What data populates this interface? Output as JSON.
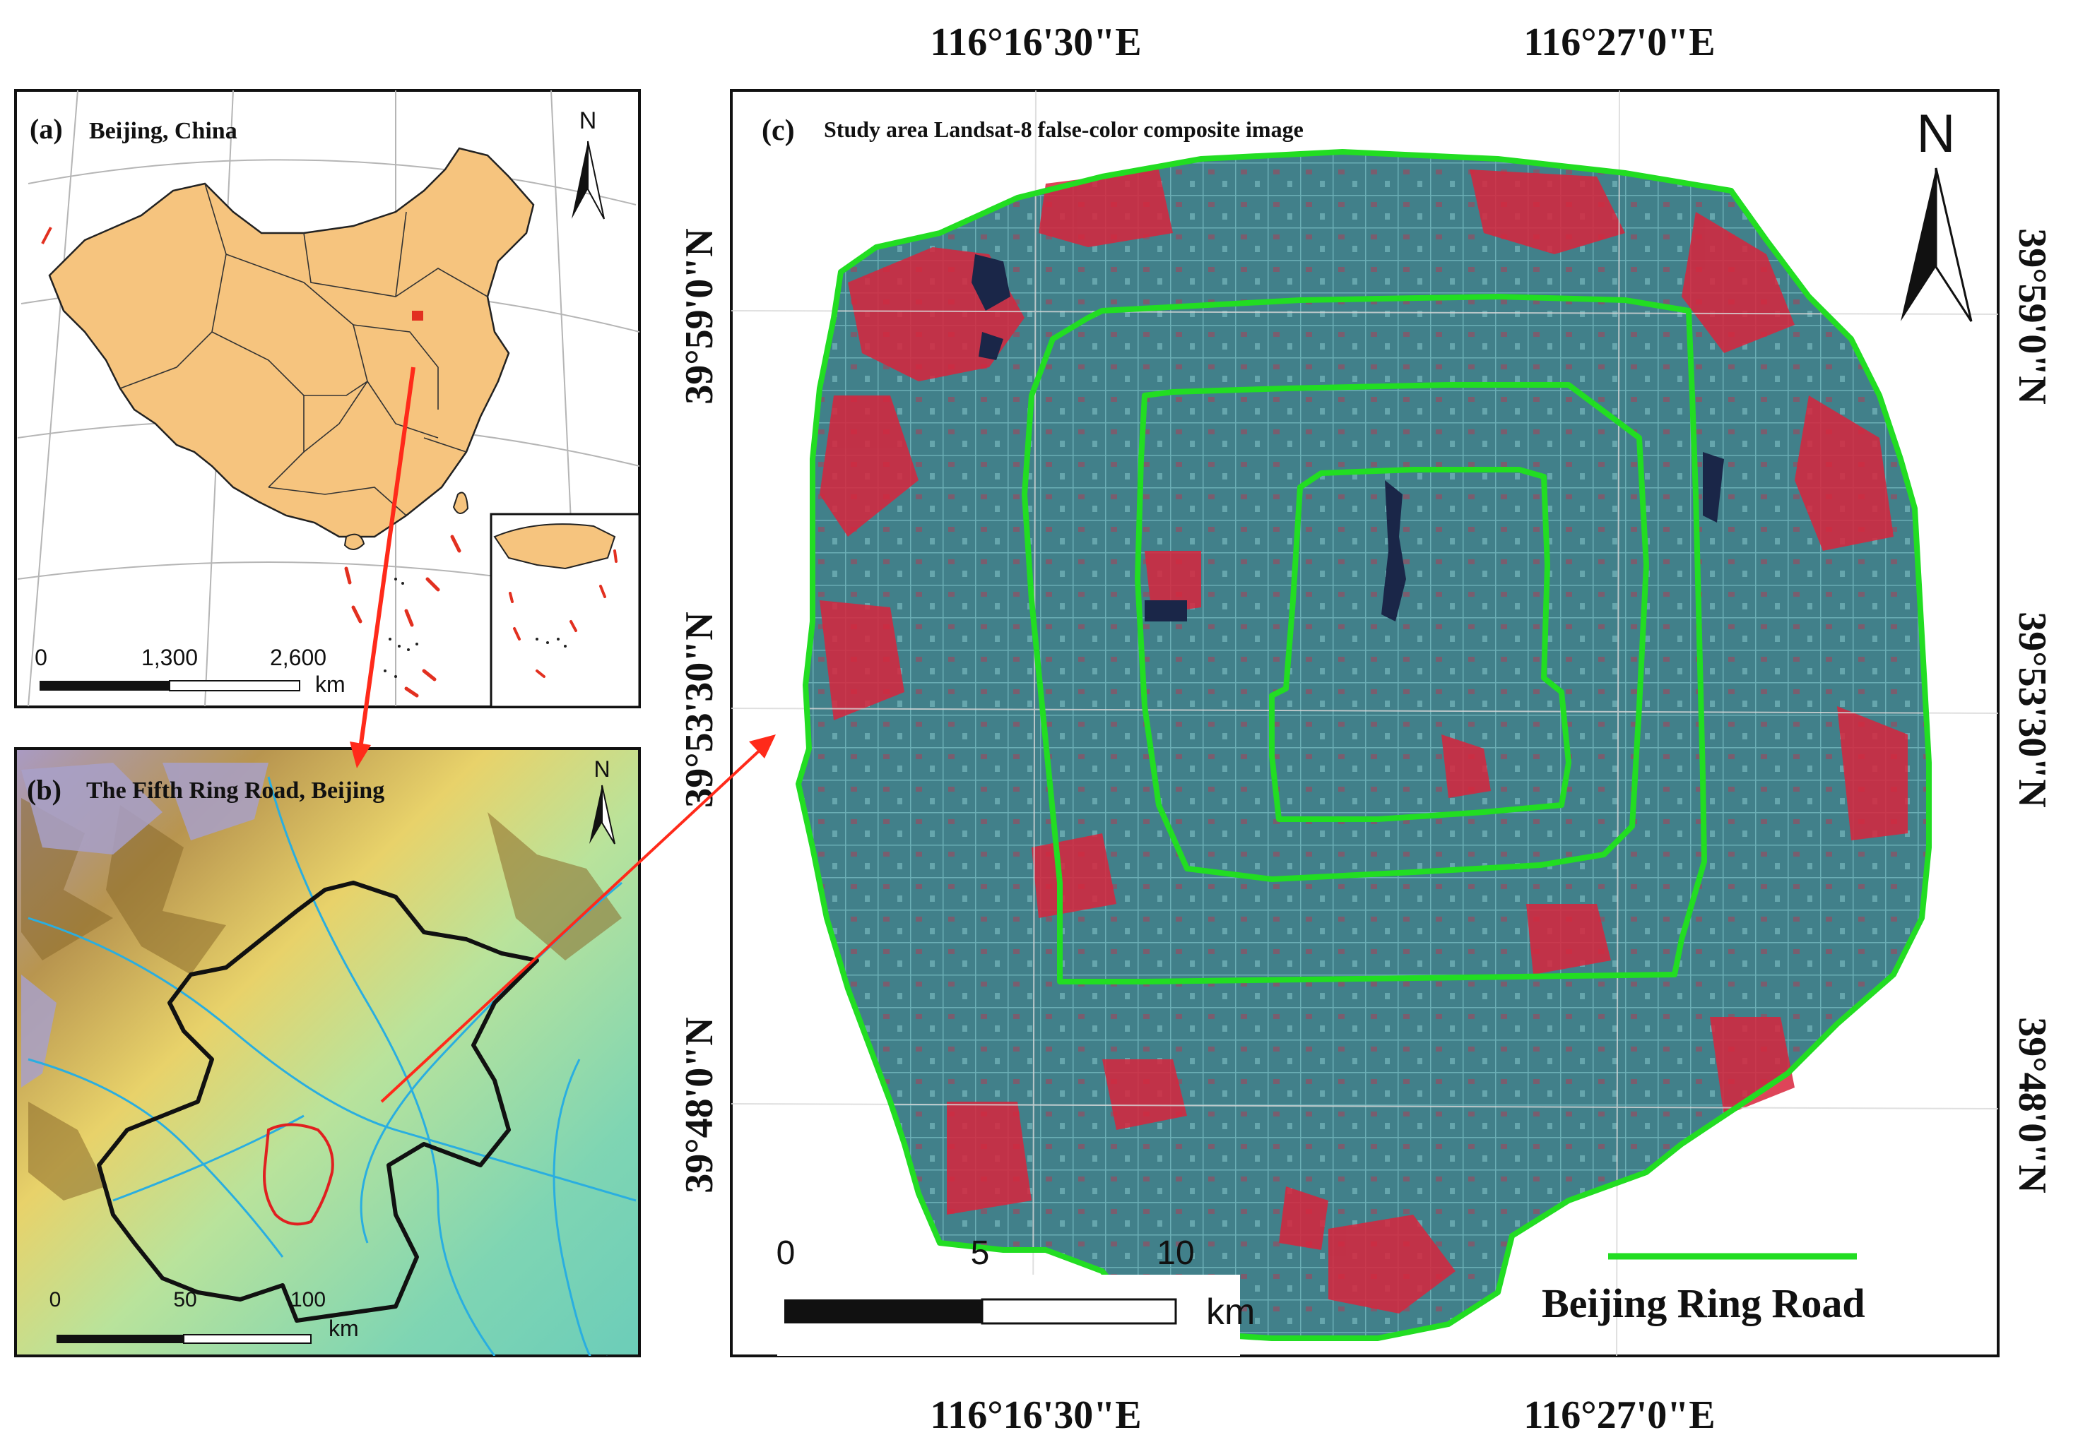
{
  "panel_a": {
    "label": "(a)",
    "title": "Beijing, China",
    "north": "N",
    "scale": {
      "ticks": [
        "0",
        "1,300",
        "2,600"
      ],
      "unit": "km"
    }
  },
  "panel_b": {
    "label": "(b)",
    "title": "The Fifth Ring Road, Beijing",
    "north": "N",
    "scale": {
      "ticks": [
        "0",
        "50",
        "100"
      ],
      "unit": "km"
    }
  },
  "panel_c": {
    "label": "(c)",
    "title": "Study area Landsat-8 false-color composite image",
    "north": "N",
    "lon_top": [
      "116°16'30\"E",
      "116°27'0\"E"
    ],
    "lon_bottom": [
      "116°16'30\"E",
      "116°27'0\"E"
    ],
    "lat_left": [
      "39°59'0\"N",
      "39°53'30\"N",
      "39°48'0\"N"
    ],
    "lat_right": [
      "39°59'0\"N",
      "39°53'30\"N",
      "39°48'0\"N"
    ],
    "scale": {
      "ticks": [
        "0",
        "5",
        "10"
      ],
      "unit": "km"
    },
    "legend": "Beijing Ring Road"
  },
  "colors": {
    "china_fill": "#f6c47e",
    "ring_road": "#22dd22",
    "arrow": "#ff2a1a",
    "false_color_base": "#3e7e86",
    "vegetation_red": "#d8243c"
  }
}
